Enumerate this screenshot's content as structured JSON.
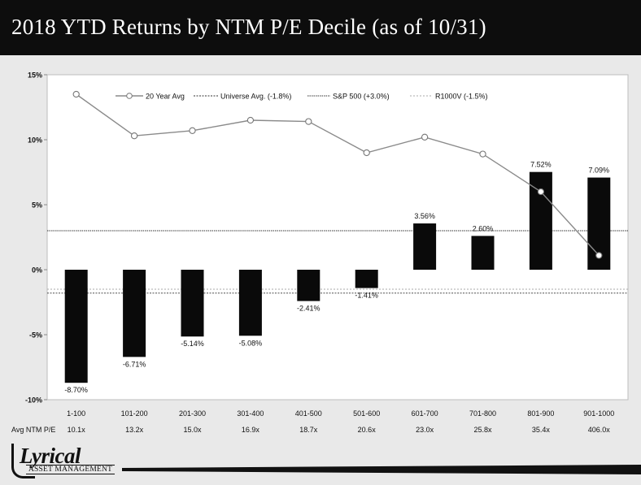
{
  "header": {
    "title": "2018 YTD Returns by NTM P/E Decile (as of 10/31)"
  },
  "chart_data": {
    "type": "bar",
    "categories": [
      "1-100",
      "101-200",
      "201-300",
      "301-400",
      "401-500",
      "501-600",
      "601-700",
      "701-800",
      "801-900",
      "901-1000"
    ],
    "pe_row_label": "Avg NTM P/E",
    "pe_values": [
      "10.1x",
      "13.2x",
      "15.0x",
      "16.9x",
      "18.7x",
      "20.6x",
      "23.0x",
      "25.8x",
      "35.4x",
      "406.0x"
    ],
    "bar_values": [
      -8.7,
      -6.71,
      -5.14,
      -5.08,
      -2.41,
      -1.41,
      3.56,
      2.6,
      7.52,
      7.09
    ],
    "bar_labels": [
      "-8.70%",
      "-6.71%",
      "-5.14%",
      "-5.08%",
      "-2.41%",
      "-1.41%",
      "3.56%",
      "2.60%",
      "7.52%",
      "7.09%"
    ],
    "series": [
      {
        "name": "20 Year Avg",
        "type": "line",
        "values": [
          13.5,
          10.3,
          10.7,
          11.5,
          11.4,
          9.0,
          10.2,
          8.9,
          6.0,
          1.1
        ]
      }
    ],
    "reference_lines": [
      {
        "name": "Universe Avg. (-1.8%)",
        "value": -1.8
      },
      {
        "name": "S&P 500 (+3.0%)",
        "value": 3.0
      },
      {
        "name": "R1000V (-1.5%)",
        "value": -1.5
      }
    ],
    "yaxis": {
      "ticks": [
        15,
        10,
        5,
        0,
        -5,
        -10
      ],
      "tick_labels": [
        "15%",
        "10%",
        "5%",
        "0%",
        "-5%",
        "-10%"
      ],
      "ylim": [
        -10,
        15
      ]
    },
    "legend_position": "top",
    "colors": {
      "bar": "#0a0a0a",
      "line": "#8a8a8a",
      "marker_fill": "#ffffff",
      "plot_bg": "#ffffff"
    }
  },
  "footer": {
    "logo_word": "Lyrical",
    "logo_sub": "ASSET MANAGEMENT"
  }
}
